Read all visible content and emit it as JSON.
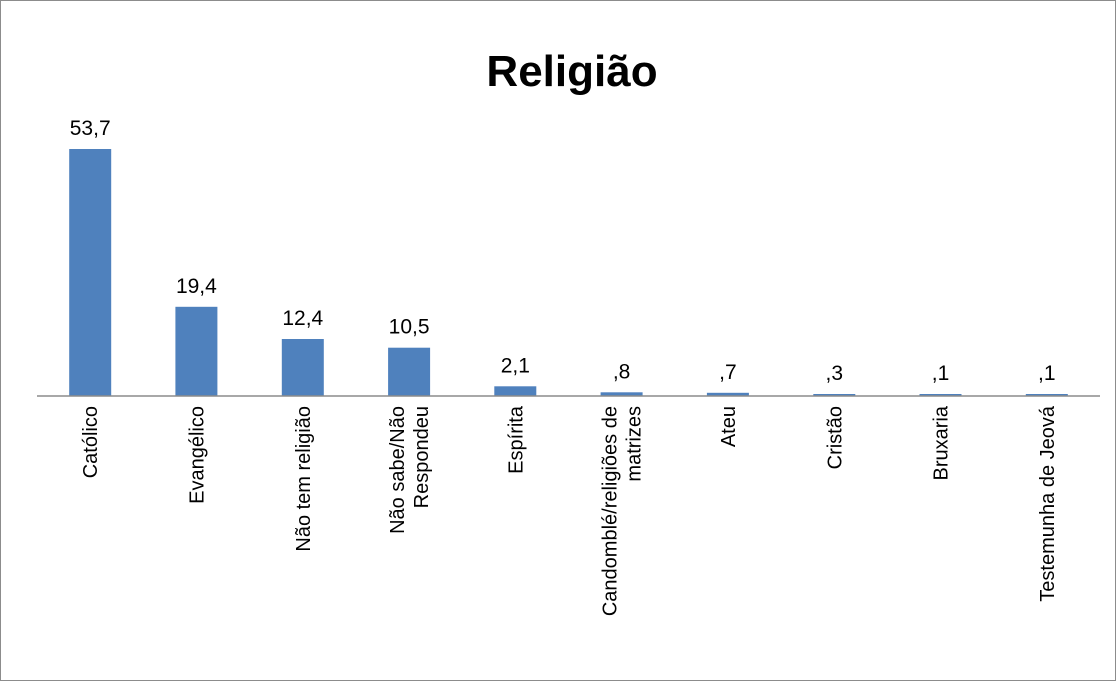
{
  "chart_data": {
    "type": "bar",
    "title": "Religião",
    "xlabel": "",
    "ylabel": "",
    "ylim": [
      0,
      55
    ],
    "grid": false,
    "legend": "none",
    "bar_color": "#4f81bd",
    "categories": [
      [
        "Católico"
      ],
      [
        "Evangélico"
      ],
      [
        "Não tem religião"
      ],
      [
        "Não sabe/Não",
        "Respondeu"
      ],
      [
        "Espírita"
      ],
      [
        "Candomblé/religiões de",
        "matrizes"
      ],
      [
        "Ateu"
      ],
      [
        "Cristão"
      ],
      [
        "Bruxaria"
      ],
      [
        "Testemunha de Jeová"
      ]
    ],
    "values": [
      53.7,
      19.4,
      12.4,
      10.5,
      2.1,
      0.8,
      0.7,
      0.3,
      0.1,
      0.1
    ],
    "data_labels": [
      "53,7",
      "19,4",
      "12,4",
      "10,5",
      "2,1",
      ",8",
      ",7",
      ",3",
      ",1",
      ",1"
    ]
  }
}
